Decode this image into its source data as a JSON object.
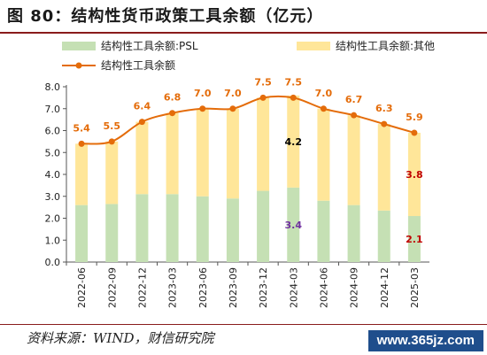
{
  "figure": {
    "title": "图 80：结构性货币政策工具余额（亿元）",
    "source": "资料来源：WIND，财信研究院",
    "watermark": "www.365jz.com"
  },
  "colors": {
    "psl_bar": "#c5e0b4",
    "other_bar": "#ffe699",
    "total_line": "#e46c0a",
    "line_label": "#e46c0a",
    "rule": "#8a1c1c"
  },
  "chart_data": {
    "type": "bar",
    "stacked": true,
    "categories": [
      "2022-06",
      "2022-09",
      "2022-12",
      "2023-03",
      "2023-06",
      "2023-09",
      "2023-12",
      "2024-03",
      "2024-06",
      "2024-09",
      "2024-12",
      "2025-03"
    ],
    "series": [
      {
        "name": "结构性工具余额:PSL",
        "type": "bar",
        "values": [
          2.6,
          2.65,
          3.1,
          3.1,
          3.0,
          2.9,
          3.25,
          3.4,
          2.8,
          2.6,
          2.35,
          2.1
        ]
      },
      {
        "name": "结构性工具余额:其他",
        "type": "bar",
        "values": [
          2.8,
          2.85,
          3.3,
          3.7,
          4.0,
          4.1,
          4.25,
          4.2,
          4.2,
          4.1,
          3.95,
          3.8
        ]
      },
      {
        "name": "结构性工具余额",
        "type": "line",
        "values": [
          5.4,
          5.5,
          6.4,
          6.8,
          7.0,
          7.0,
          7.5,
          7.5,
          7.0,
          6.7,
          6.3,
          5.9
        ]
      }
    ],
    "line_labels": [
      "5.4",
      "5.5",
      "6.4",
      "6.8",
      "7.0",
      "7.0",
      "7.5",
      "7.5",
      "7.0",
      "6.7",
      "6.3",
      "5.9"
    ],
    "extra_labels": [
      {
        "category": "2024-03",
        "series": "结构性工具余额:其他",
        "text": "4.2",
        "color": "#000000"
      },
      {
        "category": "2024-03",
        "series": "结构性工具余额:PSL",
        "text": "3.4",
        "color": "#7030a0"
      },
      {
        "category": "2025-03",
        "series": "结构性工具余额:其他",
        "text": "3.8",
        "color": "#c00000"
      },
      {
        "category": "2025-03",
        "series": "结构性工具余额:PSL",
        "text": "2.1",
        "color": "#c00000"
      }
    ],
    "y_ticks": [
      "0.0",
      "1.0",
      "2.0",
      "3.0",
      "4.0",
      "5.0",
      "6.0",
      "7.0",
      "8.0"
    ],
    "ylim": [
      0,
      8
    ],
    "legend_position": "top-left",
    "grid": false
  }
}
